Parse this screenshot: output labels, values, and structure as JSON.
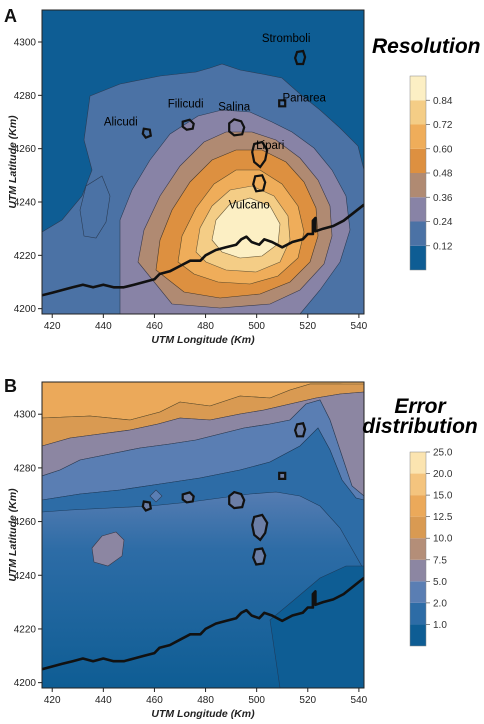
{
  "colors": {
    "resolution": [
      "#0e5d94",
      "#4b72a5",
      "#8883a6",
      "#b08a72",
      "#dd9040",
      "#efad5a",
      "#f4cd86",
      "#fcefc4"
    ],
    "error": [
      "#0e5d94",
      "#2d6ca6",
      "#5a7eb3",
      "#8c86a2",
      "#b48e78",
      "#d99a52",
      "#eba95a",
      "#f4c47e",
      "#fbe4b0"
    ],
    "coast": "#111111",
    "island_fill_b": "#6b7ea6"
  },
  "chart_data": [
    {
      "type": "heatmap",
      "panel": "A",
      "title": "Resolution",
      "xlabel": "UTM Longitude (Km)",
      "ylabel": "UTM Latitude (Km)",
      "xlim": [
        416,
        542
      ],
      "ylim": [
        4198,
        4312
      ],
      "x_ticks": [
        420,
        440,
        460,
        480,
        500,
        520,
        540
      ],
      "y_ticks": [
        4200,
        4220,
        4240,
        4260,
        4280,
        4300
      ],
      "legend_labels": [
        "0.12",
        "0.24",
        "0.36",
        "0.48",
        "0.60",
        "0.72",
        "0.84"
      ],
      "islands": [
        "Stromboli",
        "Panarea",
        "Salina",
        "Filicudi",
        "Alicudi",
        "Lipari",
        "Vulcano"
      ],
      "field_peak": {
        "x": 495,
        "y": 4233,
        "value": 0.9
      }
    },
    {
      "type": "heatmap",
      "panel": "B",
      "title": "Error\ndistribution",
      "xlabel": "UTM Longitude (Km)",
      "ylabel": "UTM Latitude (Km)",
      "xlim": [
        416,
        542
      ],
      "ylim": [
        4198,
        4312
      ],
      "x_ticks": [
        420,
        440,
        460,
        480,
        500,
        520,
        540
      ],
      "y_ticks": [
        4200,
        4220,
        4240,
        4260,
        4280,
        4300
      ],
      "legend_labels": [
        "1.0",
        "2.0",
        "5.0",
        "7.5",
        "10.0",
        "12.5",
        "15.0",
        "20.0",
        "25.0"
      ]
    }
  ],
  "islands": [
    {
      "name": "Stromboli",
      "x": 517,
      "y": 4294
    },
    {
      "name": "Panarea",
      "x": 510,
      "y": 4277
    },
    {
      "name": "Salina",
      "x": 492,
      "y": 4268
    },
    {
      "name": "Filicudi",
      "x": 473,
      "y": 4269
    },
    {
      "name": "Alicudi",
      "x": 457,
      "y": 4266
    },
    {
      "name": "Lipari",
      "x": 501,
      "y": 4258
    },
    {
      "name": "Vulcano",
      "x": 501,
      "y": 4247
    }
  ],
  "coastline": [
    [
      416,
      4205
    ],
    [
      420,
      4206
    ],
    [
      424,
      4207
    ],
    [
      428,
      4208
    ],
    [
      432,
      4209
    ],
    [
      436,
      4208
    ],
    [
      440,
      4209
    ],
    [
      444,
      4208
    ],
    [
      448,
      4208
    ],
    [
      452,
      4209
    ],
    [
      456,
      4210
    ],
    [
      460,
      4211
    ],
    [
      462,
      4213
    ],
    [
      466,
      4214
    ],
    [
      470,
      4216
    ],
    [
      474,
      4218
    ],
    [
      478,
      4218
    ],
    [
      480,
      4220
    ],
    [
      484,
      4222
    ],
    [
      488,
      4223
    ],
    [
      492,
      4224
    ],
    [
      494,
      4226
    ],
    [
      496,
      4227
    ],
    [
      498,
      4225
    ],
    [
      501,
      4224
    ],
    [
      503,
      4226
    ],
    [
      506,
      4225
    ],
    [
      510,
      4223
    ],
    [
      514,
      4225
    ],
    [
      518,
      4226
    ],
    [
      520,
      4228
    ],
    [
      522,
      4228
    ],
    [
      522,
      4233
    ],
    [
      523,
      4234
    ],
    [
      523,
      4229
    ],
    [
      526,
      4230
    ],
    [
      530,
      4231
    ],
    [
      534,
      4233
    ],
    [
      538,
      4236
    ],
    [
      542,
      4239
    ]
  ]
}
